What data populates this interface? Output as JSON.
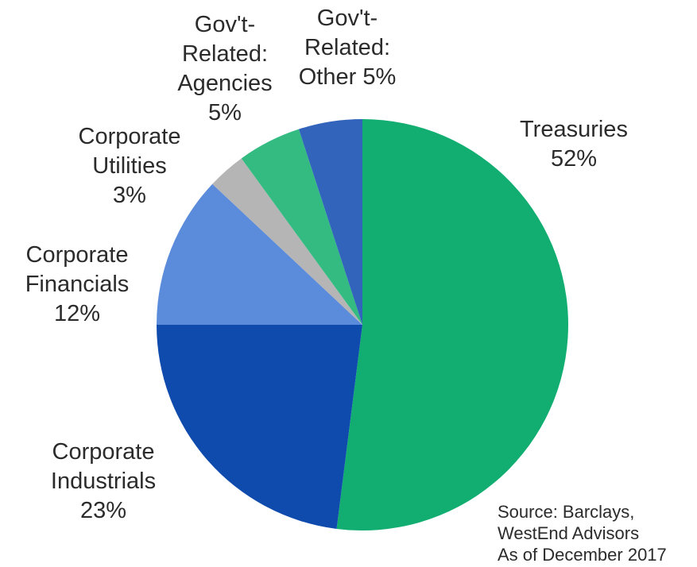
{
  "chart_data": {
    "type": "pie",
    "start_angle_deg": 0,
    "direction": "clockwise",
    "slices": [
      {
        "name": "Treasuries",
        "value": 52,
        "display": "52%",
        "color": "#12ae71",
        "label_lines": [
          "Treasuries",
          "52%"
        ]
      },
      {
        "name": "Corporate Industrials",
        "value": 23,
        "display": "23%",
        "color": "#0f4aad",
        "label_lines": [
          "Corporate",
          "Industrials",
          "23%"
        ]
      },
      {
        "name": "Corporate Financials",
        "value": 12,
        "display": "12%",
        "color": "#5b8bdb",
        "label_lines": [
          "Corporate",
          "Financials",
          "12%"
        ]
      },
      {
        "name": "Corporate Utilities",
        "value": 3,
        "display": "3%",
        "color": "#b5b5b5",
        "label_lines": [
          "Corporate",
          "Utilities",
          "3%"
        ]
      },
      {
        "name": "Gov't-Related: Agencies",
        "value": 5,
        "display": "5%",
        "color": "#33bb82",
        "label_lines": [
          "Gov't-",
          "Related:",
          "Agencies",
          "5%"
        ]
      },
      {
        "name": "Gov't-Related: Other",
        "value": 5,
        "display": "5%",
        "color": "#3264bc",
        "label_lines": [
          "Gov't-",
          "Related:",
          "Other 5%"
        ]
      }
    ],
    "source_lines": [
      "Source: Barclays,",
      "WestEnd Advisors",
      "As of December 2017"
    ]
  }
}
